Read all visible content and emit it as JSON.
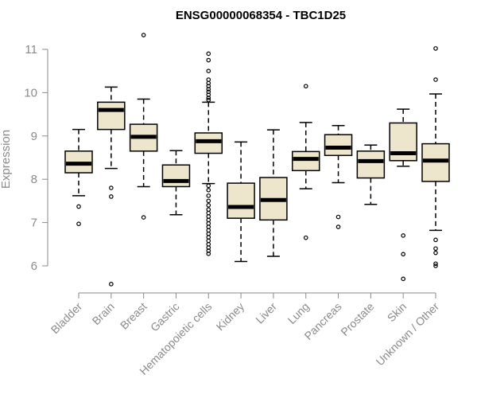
{
  "chart_data": {
    "type": "boxplot",
    "title": "ENSG00000068354 - TBC1D25",
    "ylabel": "Expression",
    "xlabel": "",
    "ylim": [
      5.45,
      11.4
    ],
    "yticks": [
      6,
      7,
      8,
      9,
      10,
      11
    ],
    "box_fill": "#ede6cd",
    "axis_color": "#8a8a8a",
    "categories": [
      "Bladder",
      "Brain",
      "Breast",
      "Gastric",
      "Hematopoietic cells",
      "Kidney",
      "Liver",
      "Lung",
      "Pancreas",
      "Prostate",
      "Skin",
      "Unknown / Other"
    ],
    "boxes": [
      {
        "name": "Bladder",
        "whisker_low": 7.62,
        "q1": 8.15,
        "median": 8.36,
        "q3": 8.65,
        "whisker_high": 9.15,
        "outliers": [
          7.37,
          6.97
        ]
      },
      {
        "name": "Brain",
        "whisker_low": 8.25,
        "q1": 9.15,
        "median": 9.6,
        "q3": 9.78,
        "whisker_high": 10.13,
        "outliers": [
          7.8,
          7.6,
          5.58
        ]
      },
      {
        "name": "Breast",
        "whisker_low": 7.83,
        "q1": 8.65,
        "median": 8.98,
        "q3": 9.27,
        "whisker_high": 9.85,
        "outliers": [
          11.33,
          7.12
        ]
      },
      {
        "name": "Gastric",
        "whisker_low": 7.18,
        "q1": 7.83,
        "median": 7.96,
        "q3": 8.33,
        "whisker_high": 8.66,
        "outliers": []
      },
      {
        "name": "Hematopoietic cells",
        "whisker_low": 7.9,
        "q1": 8.6,
        "median": 8.88,
        "q3": 9.07,
        "whisker_high": 9.78,
        "outliers": [
          10.9,
          10.75,
          10.5,
          10.3,
          10.22,
          10.15,
          10.08,
          10.02,
          9.95,
          9.88,
          9.83,
          7.85,
          7.75,
          7.62,
          7.5,
          7.4,
          7.3,
          7.22,
          7.14,
          7.06,
          6.98,
          6.9,
          6.82,
          6.74,
          6.66,
          6.58,
          6.5,
          6.42,
          6.35,
          6.28
        ]
      },
      {
        "name": "Kidney",
        "whisker_low": 6.1,
        "q1": 7.1,
        "median": 7.36,
        "q3": 7.91,
        "whisker_high": 8.86,
        "outliers": []
      },
      {
        "name": "Liver",
        "whisker_low": 6.22,
        "q1": 7.06,
        "median": 7.52,
        "q3": 8.04,
        "whisker_high": 9.14,
        "outliers": []
      },
      {
        "name": "Lung",
        "whisker_low": 7.78,
        "q1": 8.2,
        "median": 8.47,
        "q3": 8.64,
        "whisker_high": 9.31,
        "outliers": [
          10.15,
          6.65
        ]
      },
      {
        "name": "Pancreas",
        "whisker_low": 7.92,
        "q1": 8.55,
        "median": 8.73,
        "q3": 9.03,
        "whisker_high": 9.24,
        "outliers": [
          7.13,
          6.9
        ]
      },
      {
        "name": "Prostate",
        "whisker_low": 7.42,
        "q1": 8.03,
        "median": 8.42,
        "q3": 8.65,
        "whisker_high": 8.79,
        "outliers": []
      },
      {
        "name": "Skin",
        "whisker_low": 8.3,
        "q1": 8.43,
        "median": 8.6,
        "q3": 9.3,
        "whisker_high": 9.62,
        "outliers": [
          6.7,
          6.27,
          5.7
        ]
      },
      {
        "name": "Unknown / Other",
        "whisker_low": 6.82,
        "q1": 7.95,
        "median": 8.43,
        "q3": 8.82,
        "whisker_high": 9.97,
        "outliers": [
          11.02,
          10.3,
          6.6,
          6.4,
          6.3,
          6.05,
          6.0
        ]
      }
    ]
  }
}
